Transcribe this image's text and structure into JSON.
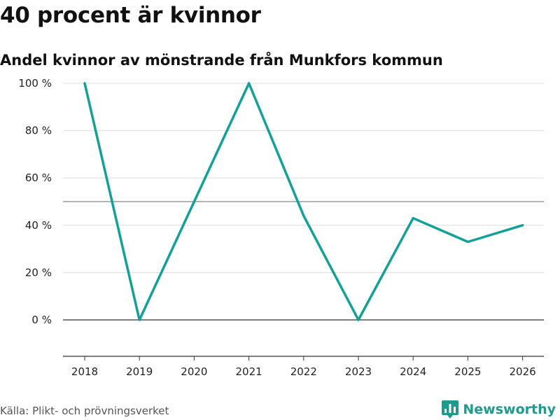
{
  "header": {
    "title": "40 procent är kvinnor",
    "subtitle": "Andel kvinnor av mönstrande från Munkfors kommun"
  },
  "footer": {
    "source": "Källa: Plikt- och prövningsverket",
    "brand": "Newsworthy"
  },
  "colors": {
    "line": "#13a197",
    "grid": "#dddddd",
    "reference": "#888888",
    "zero": "#333333",
    "brand": "#1f9a8f"
  },
  "chart_data": {
    "type": "line",
    "title": "40 procent är kvinnor",
    "subtitle": "Andel kvinnor av mönstrande från Munkfors kommun",
    "x": [
      "2018",
      "2019",
      "2020",
      "2021",
      "2022",
      "2023",
      "2024",
      "2025",
      "2026"
    ],
    "series": [
      {
        "name": "Andel kvinnor",
        "values": [
          100,
          0,
          50,
          100,
          44,
          0,
          43,
          33,
          40
        ]
      }
    ],
    "y_ticks": [
      0,
      20,
      40,
      60,
      80,
      100
    ],
    "y_tick_labels": [
      "0 %",
      "20 %",
      "40 %",
      "60 %",
      "80 %",
      "100 %"
    ],
    "reference_line": 50,
    "ylim": [
      -15,
      100
    ],
    "xlabel": "",
    "ylabel": "",
    "grid": true,
    "legend": "none"
  }
}
